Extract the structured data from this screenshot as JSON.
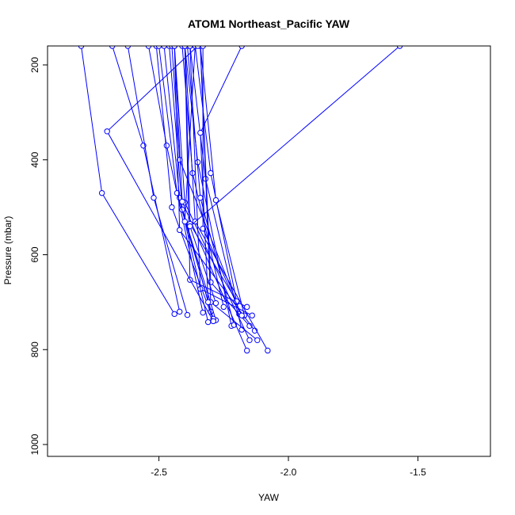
{
  "chart_data": {
    "type": "line",
    "title": "ATOM1 Northeast_Pacific YAW",
    "xlabel": "YAW",
    "ylabel": "Pressure (mbar)",
    "xlim": [
      -2.93,
      -1.22
    ],
    "ylim": [
      1025,
      160
    ],
    "y_reversed": true,
    "x_ticks": [
      -2.5,
      -2.0,
      -1.5
    ],
    "x_tick_labels": [
      "-2.5",
      "-2.0",
      "-1.5"
    ],
    "y_ticks": [
      200,
      400,
      600,
      800,
      1000
    ],
    "y_tick_labels": [
      "200",
      "400",
      "600",
      "800",
      "1000"
    ],
    "grid": false,
    "legend": "none",
    "color": "#0000ff",
    "series": [
      {
        "x": [
          -2.44,
          -2.72,
          -2.8
        ],
        "y": [
          725,
          470,
          160
        ]
      },
      {
        "x": [
          -2.42,
          -2.56,
          -2.68
        ],
        "y": [
          720,
          370,
          160
        ]
      },
      {
        "x": [
          -2.39,
          -2.52,
          -2.62
        ],
        "y": [
          727,
          480,
          160
        ]
      },
      {
        "x": [
          -2.33,
          -2.47,
          -2.54
        ],
        "y": [
          722,
          370,
          160
        ]
      },
      {
        "x": [
          -2.3,
          -2.42,
          -2.48
        ],
        "y": [
          720,
          480,
          160
        ]
      },
      {
        "x": [
          -2.29,
          -2.45,
          -2.51
        ],
        "y": [
          738,
          500,
          160
        ]
      },
      {
        "x": [
          -2.28,
          -2.41,
          -2.46
        ],
        "y": [
          738,
          505,
          160
        ]
      },
      {
        "x": [
          -2.29,
          -2.43,
          -2.5
        ],
        "y": [
          735,
          470,
          160
        ]
      },
      {
        "x": [
          -2.25,
          -2.37,
          -2.41
        ],
        "y": [
          710,
          428,
          160
        ]
      },
      {
        "x": [
          -2.22,
          -2.35,
          -2.4
        ],
        "y": [
          750,
          405,
          160
        ]
      },
      {
        "x": [
          -2.21,
          -2.34,
          -2.39
        ],
        "y": [
          748,
          480,
          160
        ]
      },
      {
        "x": [
          -2.2,
          -2.42,
          -2.45
        ],
        "y": [
          700,
          400,
          160
        ]
      },
      {
        "x": [
          -2.19,
          -2.3,
          -2.36
        ],
        "y": [
          725,
          428,
          160
        ]
      },
      {
        "x": [
          -2.18,
          -2.32,
          -2.38
        ],
        "y": [
          758,
          440,
          160
        ]
      },
      {
        "x": [
          -2.17,
          -2.28,
          -2.34
        ],
        "y": [
          728,
          485,
          160
        ]
      },
      {
        "x": [
          -2.16,
          -2.38,
          -2.4
        ],
        "y": [
          710,
          653,
          160
        ]
      },
      {
        "x": [
          -2.15,
          -2.3,
          -2.34
        ],
        "y": [
          750,
          658,
          160
        ]
      },
      {
        "x": [
          -2.14,
          -2.34,
          -2.38
        ],
        "y": [
          728,
          672,
          160
        ]
      },
      {
        "x": [
          -2.13,
          -2.42,
          -2.44
        ],
        "y": [
          760,
          548,
          160
        ]
      },
      {
        "x": [
          -2.12,
          -2.3,
          -2.34
        ],
        "y": [
          780,
          700,
          160
        ]
      },
      {
        "x": [
          -2.15,
          -2.4,
          -2.44
        ],
        "y": [
          780,
          490,
          160
        ]
      },
      {
        "x": [
          -2.16,
          -2.41,
          -2.44
        ],
        "y": [
          802,
          488,
          160
        ]
      },
      {
        "x": [
          -2.08,
          -2.36,
          -2.4
        ],
        "y": [
          802,
          530,
          160
        ]
      },
      {
        "x": [
          -2.2,
          -2.38,
          -2.4
        ],
        "y": [
          698,
          535,
          160
        ]
      },
      {
        "x": [
          -2.18,
          -2.33,
          -2.33
        ],
        "y": [
          728,
          545,
          160
        ]
      },
      {
        "x": [
          -2.31,
          -2.4,
          -2.36
        ],
        "y": [
          742,
          530,
          160
        ]
      },
      {
        "x": [
          -2.29,
          -2.7,
          -2.35
        ],
        "y": [
          740,
          340,
          160
        ]
      },
      {
        "x": [
          -2.31,
          -2.34,
          -2.18
        ],
        "y": [
          700,
          343,
          160
        ]
      },
      {
        "x": [
          -2.28,
          -2.38,
          -1.57
        ],
        "y": [
          702,
          540,
          160
        ]
      }
    ]
  }
}
